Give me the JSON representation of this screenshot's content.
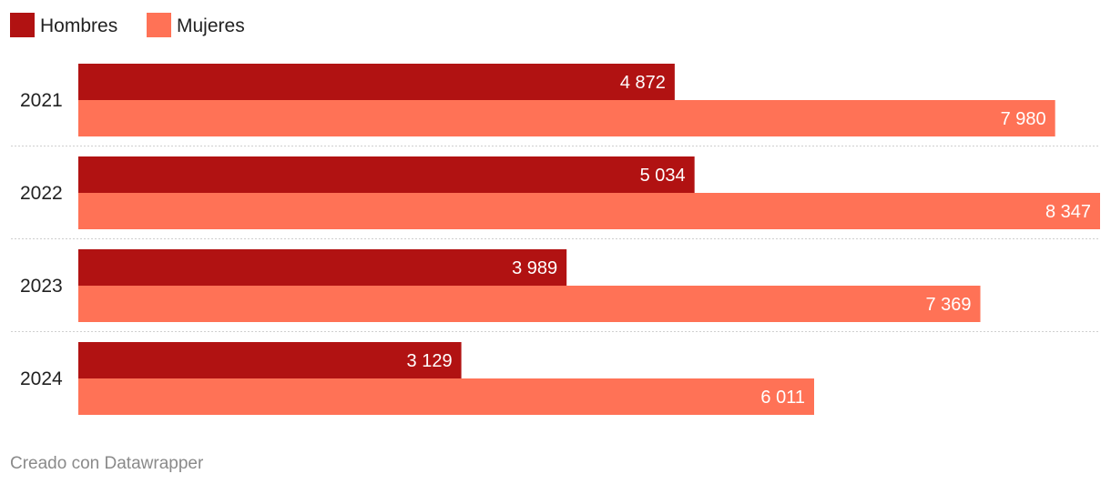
{
  "chart_data": {
    "type": "bar",
    "orientation": "horizontal",
    "categories": [
      "2021",
      "2022",
      "2023",
      "2024"
    ],
    "series": [
      {
        "name": "Hombres",
        "color": "#b11212",
        "values": [
          4872,
          5034,
          3989,
          3129
        ],
        "labels": [
          "4 872",
          "5 034",
          "3 989",
          "3 129"
        ]
      },
      {
        "name": "Mujeres",
        "color": "#ff7256",
        "values": [
          7980,
          8347,
          7369,
          6011
        ],
        "labels": [
          "7 980",
          "8 347",
          "7 369",
          "6 011"
        ]
      }
    ],
    "xlim": [
      0,
      8347
    ],
    "grid": false,
    "legend": "top-left"
  },
  "footer": {
    "credit": "Creado con Datawrapper"
  }
}
